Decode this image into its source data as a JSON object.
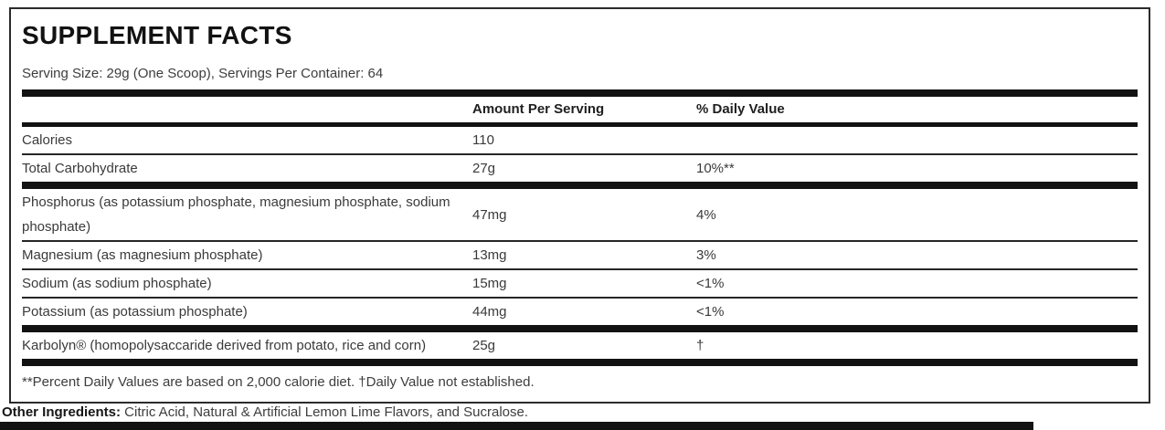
{
  "panel": {
    "title": "SUPPLEMENT FACTS",
    "serving_line": "Serving Size: 29g (One Scoop), Servings Per Container: 64",
    "columns": {
      "amount": "Amount Per Serving",
      "dv": "% Daily Value"
    },
    "rows": [
      {
        "label": "Calories",
        "amount": "110",
        "dv": "",
        "sep": "thin"
      },
      {
        "label": "Total Carbohydrate",
        "amount": "27g",
        "dv": "10%**",
        "sep": "thick"
      },
      {
        "label": "Phosphorus (as potassium phosphate, magnesium phosphate, sodium phosphate)",
        "amount": "47mg",
        "dv": "4%",
        "sep": "thin"
      },
      {
        "label": "Magnesium (as magnesium phosphate)",
        "amount": "13mg",
        "dv": "3%",
        "sep": "thin"
      },
      {
        "label": "Sodium (as sodium phosphate)",
        "amount": "15mg",
        "dv": "<1%",
        "sep": "thin"
      },
      {
        "label": "Potassium (as potassium phosphate)",
        "amount": "44mg",
        "dv": "<1%",
        "sep": "thick"
      },
      {
        "label": "Karbolyn® (homopolysaccaride derived from potato, rice and corn)",
        "amount": "25g",
        "dv": "†",
        "sep": "thick"
      }
    ],
    "footnote": "**Percent Daily Values are based on 2,000 calorie diet. †Daily Value not established."
  },
  "other_ingredients": {
    "label": "Other Ingredients:",
    "text": " Citric Acid, Natural & Artificial Lemon Lime Flavors, and Sucralose."
  },
  "colors": {
    "bar": "#121212",
    "border": "#2b2b2b",
    "body_text": "#3a3a3a",
    "heading_text": "#121212"
  }
}
